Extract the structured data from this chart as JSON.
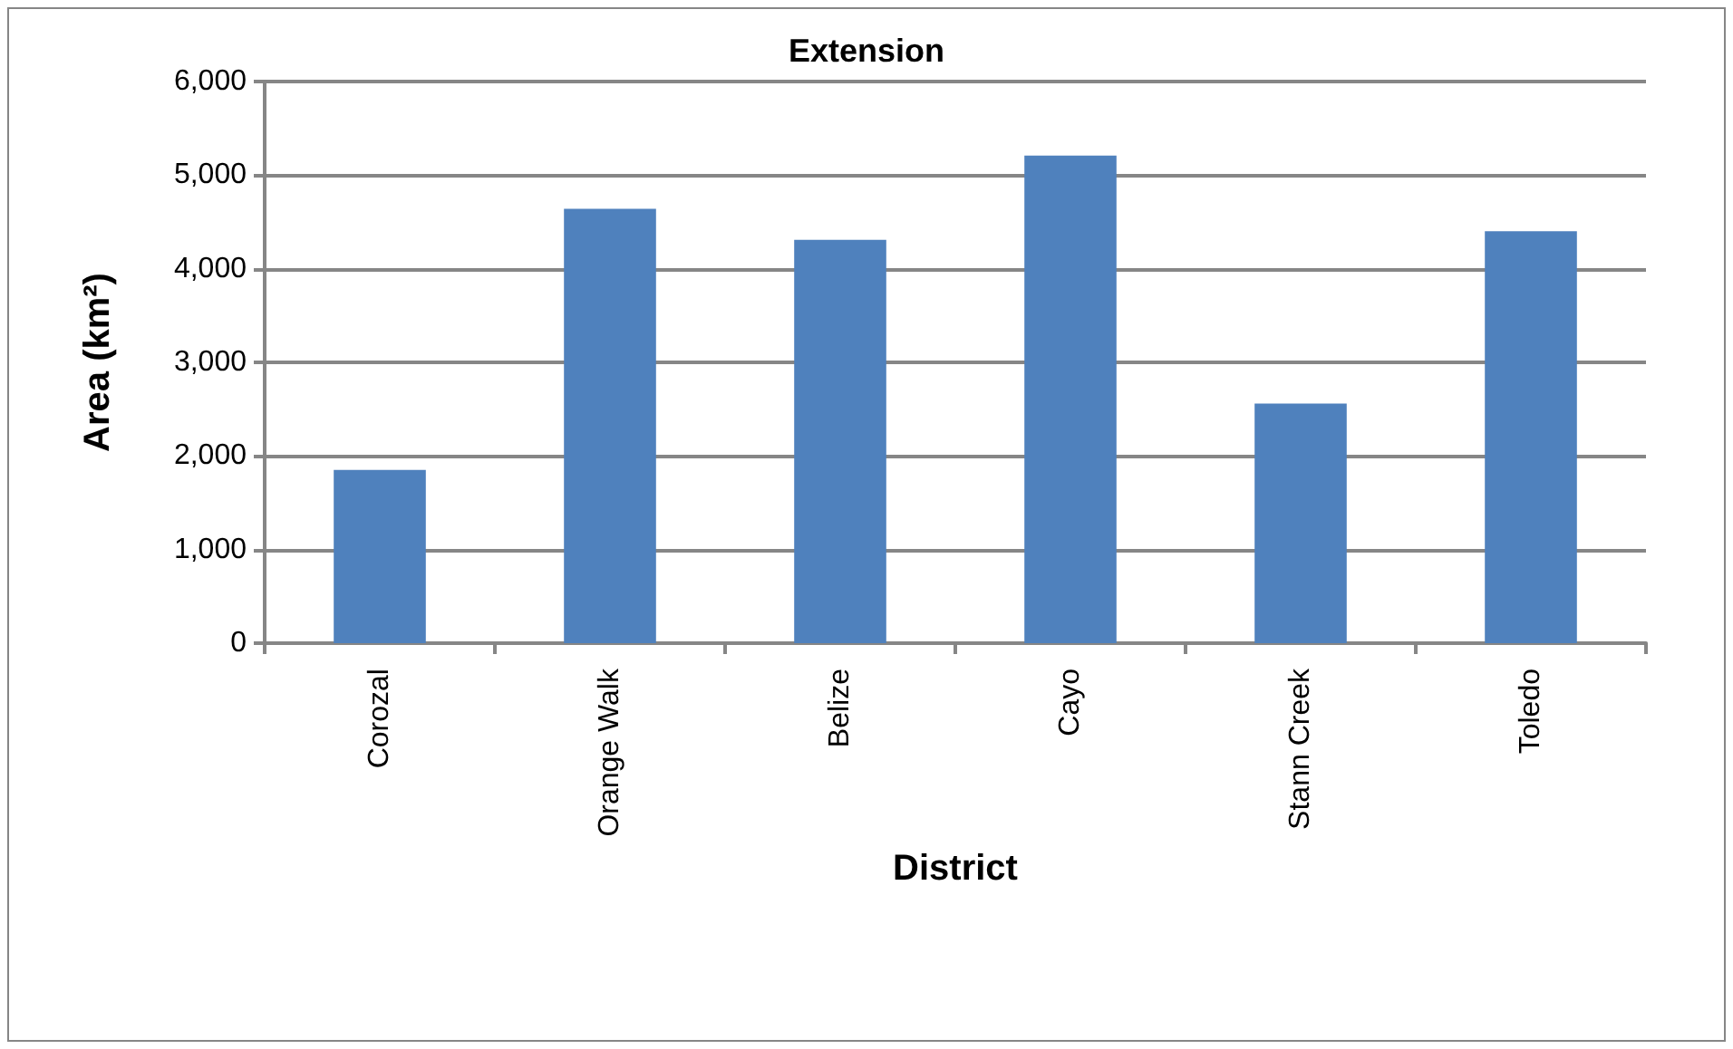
{
  "chart_data": {
    "type": "bar",
    "title": "Extension",
    "xlabel": "District",
    "ylabel": "Area (km²)",
    "categories": [
      "Corozal",
      "Orange Walk",
      "Belize",
      "Cayo",
      "Stann Creek",
      "Toledo"
    ],
    "values": [
      1850,
      4640,
      4310,
      5210,
      2560,
      4400
    ],
    "color": "#4f81bd",
    "ylim": [
      0,
      6000
    ],
    "yticks": [
      {
        "value": 0,
        "label": "0"
      },
      {
        "value": 1000,
        "label": "1,000"
      },
      {
        "value": 2000,
        "label": "2,000"
      },
      {
        "value": 3000,
        "label": "3,000"
      },
      {
        "value": 4000,
        "label": "4,000"
      },
      {
        "value": 5000,
        "label": "5,000"
      },
      {
        "value": 6000,
        "label": "6,000"
      }
    ],
    "grid": "y"
  }
}
